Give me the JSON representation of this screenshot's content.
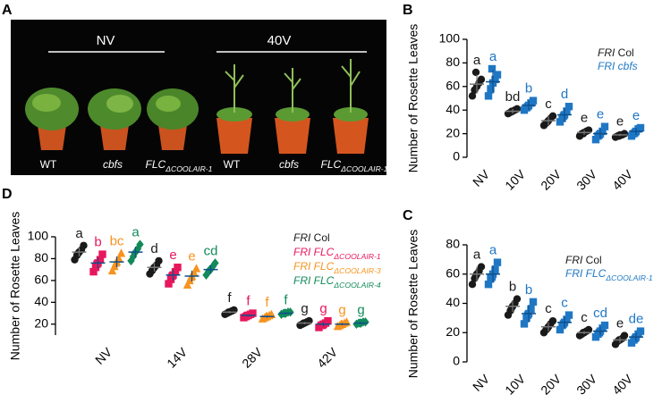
{
  "photo": {
    "panel": "A",
    "groups": [
      {
        "label": "NV",
        "plants": [
          "WT",
          "cbfs",
          "FLCΔCOOLAIR-1"
        ]
      },
      {
        "label": "40V",
        "plants": [
          "WT",
          "cbfs",
          "FLCΔCOOLAIR-1"
        ]
      }
    ]
  },
  "chart_data": [
    {
      "type": "strip",
      "panel": "B",
      "ylabel": "Number of Rosette Leaves",
      "categories": [
        "NV",
        "10V",
        "20V",
        "30V",
        "40V"
      ],
      "ylim": [
        0,
        100
      ],
      "yticks": [
        0,
        20,
        40,
        60,
        80,
        100
      ],
      "series": [
        {
          "name": "FRI Col",
          "color": "#1a1a1a",
          "marker": "circle",
          "means": [
            62,
            39,
            31,
            21,
            19
          ],
          "sds": [
            8,
            2,
            4,
            2,
            1
          ],
          "letters": [
            "a",
            "bd",
            "c",
            "e",
            "e"
          ],
          "points": [
            [
              52,
              57,
              60,
              63,
              66,
              72
            ],
            [
              37,
              38,
              39,
              40,
              41,
              39
            ],
            [
              27,
              29,
              31,
              33,
              35,
              30
            ],
            [
              18,
              20,
              21,
              22,
              23,
              20
            ],
            [
              17,
              18,
              19,
              19,
              20,
              18
            ]
          ]
        },
        {
          "name": "FRI cbfs",
          "color": "#1f77c4",
          "marker": "square",
          "means": [
            64,
            44,
            36,
            20,
            22
          ],
          "sds": [
            10,
            4,
            6,
            4,
            3
          ],
          "letters": [
            "a",
            "b",
            "d",
            "e",
            "e"
          ],
          "points": [
            [
              52,
              58,
              63,
              66,
              70,
              75
            ],
            [
              40,
              42,
              44,
              46,
              48,
              43
            ],
            [
              30,
              33,
              36,
              39,
              43,
              35
            ],
            [
              15,
              18,
              20,
              22,
              26,
              19
            ],
            [
              18,
              20,
              22,
              24,
              25,
              21
            ]
          ]
        }
      ]
    },
    {
      "type": "strip",
      "panel": "C",
      "ylabel": "Number of Rosette Leaves",
      "categories": [
        "NV",
        "10V",
        "20V",
        "30V",
        "40V"
      ],
      "ylim": [
        0,
        80
      ],
      "yticks": [
        0,
        20,
        40,
        60,
        80
      ],
      "series": [
        {
          "name": "FRI Col",
          "color": "#1a1a1a",
          "marker": "circle",
          "means": [
            60,
            38,
            24,
            20,
            15
          ],
          "sds": [
            5,
            4,
            3,
            1,
            2
          ],
          "letters": [
            "a",
            "b",
            "c",
            "c",
            "e"
          ],
          "points": [
            [
              53,
              57,
              60,
              62,
              65,
              59
            ],
            [
              32,
              35,
              38,
              40,
              43,
              37
            ],
            [
              20,
              22,
              24,
              26,
              28,
              23
            ],
            [
              18,
              19,
              20,
              21,
              22,
              20
            ],
            [
              12,
              14,
              15,
              16,
              18,
              15
            ]
          ]
        },
        {
          "name": "FRI FLCΔCOOLAIR-1",
          "color": "#1f77c4",
          "marker": "square",
          "means": [
            60,
            33,
            27,
            21,
            17
          ],
          "sds": [
            6,
            6,
            4,
            3,
            3
          ],
          "letters": [
            "a",
            "b",
            "c",
            "cd",
            "de"
          ],
          "points": [
            [
              53,
              57,
              60,
              63,
              68,
              58
            ],
            [
              26,
              30,
              33,
              36,
              41,
              32
            ],
            [
              22,
              25,
              27,
              29,
              32,
              26
            ],
            [
              17,
              19,
              21,
              23,
              25,
              20
            ],
            [
              13,
              15,
              17,
              19,
              21,
              16
            ]
          ]
        }
      ]
    },
    {
      "type": "strip",
      "panel": "D",
      "ylabel": "Number of Rosette Leaves",
      "categories": [
        "NV",
        "14V",
        "28V",
        "42V"
      ],
      "ylim": [
        10,
        100
      ],
      "yticks": [
        20,
        40,
        60,
        80,
        100
      ],
      "series": [
        {
          "name": "FRI Col",
          "color": "#1a1a1a",
          "marker": "circle",
          "means": [
            86,
            72,
            31,
            21
          ],
          "sds": [
            4,
            4,
            1,
            1
          ],
          "letters": [
            "a",
            "d",
            "f",
            "g"
          ],
          "points": [
            [
              79,
              83,
              86,
              88,
              92,
              85
            ],
            [
              66,
              69,
              72,
              74,
              78,
              71
            ],
            [
              29,
              30,
              31,
              32,
              33,
              31
            ],
            [
              19,
              20,
              21,
              22,
              23,
              21
            ]
          ]
        },
        {
          "name": "FRI FLCΔCOOLAIR-1",
          "color": "#e8175d",
          "marker": "square",
          "means": [
            76,
            65,
            28,
            20
          ],
          "sds": [
            5,
            5,
            1,
            2
          ],
          "letters": [
            "b",
            "e",
            "f",
            "g"
          ],
          "points": [
            [
              68,
              72,
              76,
              79,
              84,
              75
            ],
            [
              57,
              61,
              65,
              68,
              72,
              64
            ],
            [
              26,
              27,
              28,
              29,
              30,
              28
            ],
            [
              17,
              19,
              20,
              21,
              23,
              19
            ]
          ]
        },
        {
          "name": "FRI FLCΔCOOLAIR-3",
          "color": "#f7931e",
          "marker": "triangle",
          "means": [
            77,
            64,
            27,
            20
          ],
          "sds": [
            5,
            5,
            1,
            1
          ],
          "letters": [
            "bc",
            "e",
            "f",
            "g"
          ],
          "points": [
            [
              69,
              73,
              77,
              80,
              85,
              76
            ],
            [
              56,
              60,
              64,
              67,
              71,
              63
            ],
            [
              25,
              26,
              27,
              28,
              29,
              27
            ],
            [
              18,
              19,
              20,
              21,
              22,
              20
            ]
          ]
        },
        {
          "name": "FRI FLCΔCOOLAIR-4",
          "color": "#128a5a",
          "marker": "diamond",
          "means": [
            86,
            70,
            30,
            21
          ],
          "sds": [
            5,
            4,
            1,
            1
          ],
          "letters": [
            "a",
            "cd",
            "f",
            "g"
          ],
          "points": [
            [
              78,
              82,
              86,
              89,
              93,
              85
            ],
            [
              65,
              68,
              70,
              73,
              76,
              70
            ],
            [
              29,
              30,
              30,
              31,
              31,
              30
            ],
            [
              20,
              21,
              21,
              22,
              22,
              21
            ]
          ]
        }
      ]
    }
  ]
}
